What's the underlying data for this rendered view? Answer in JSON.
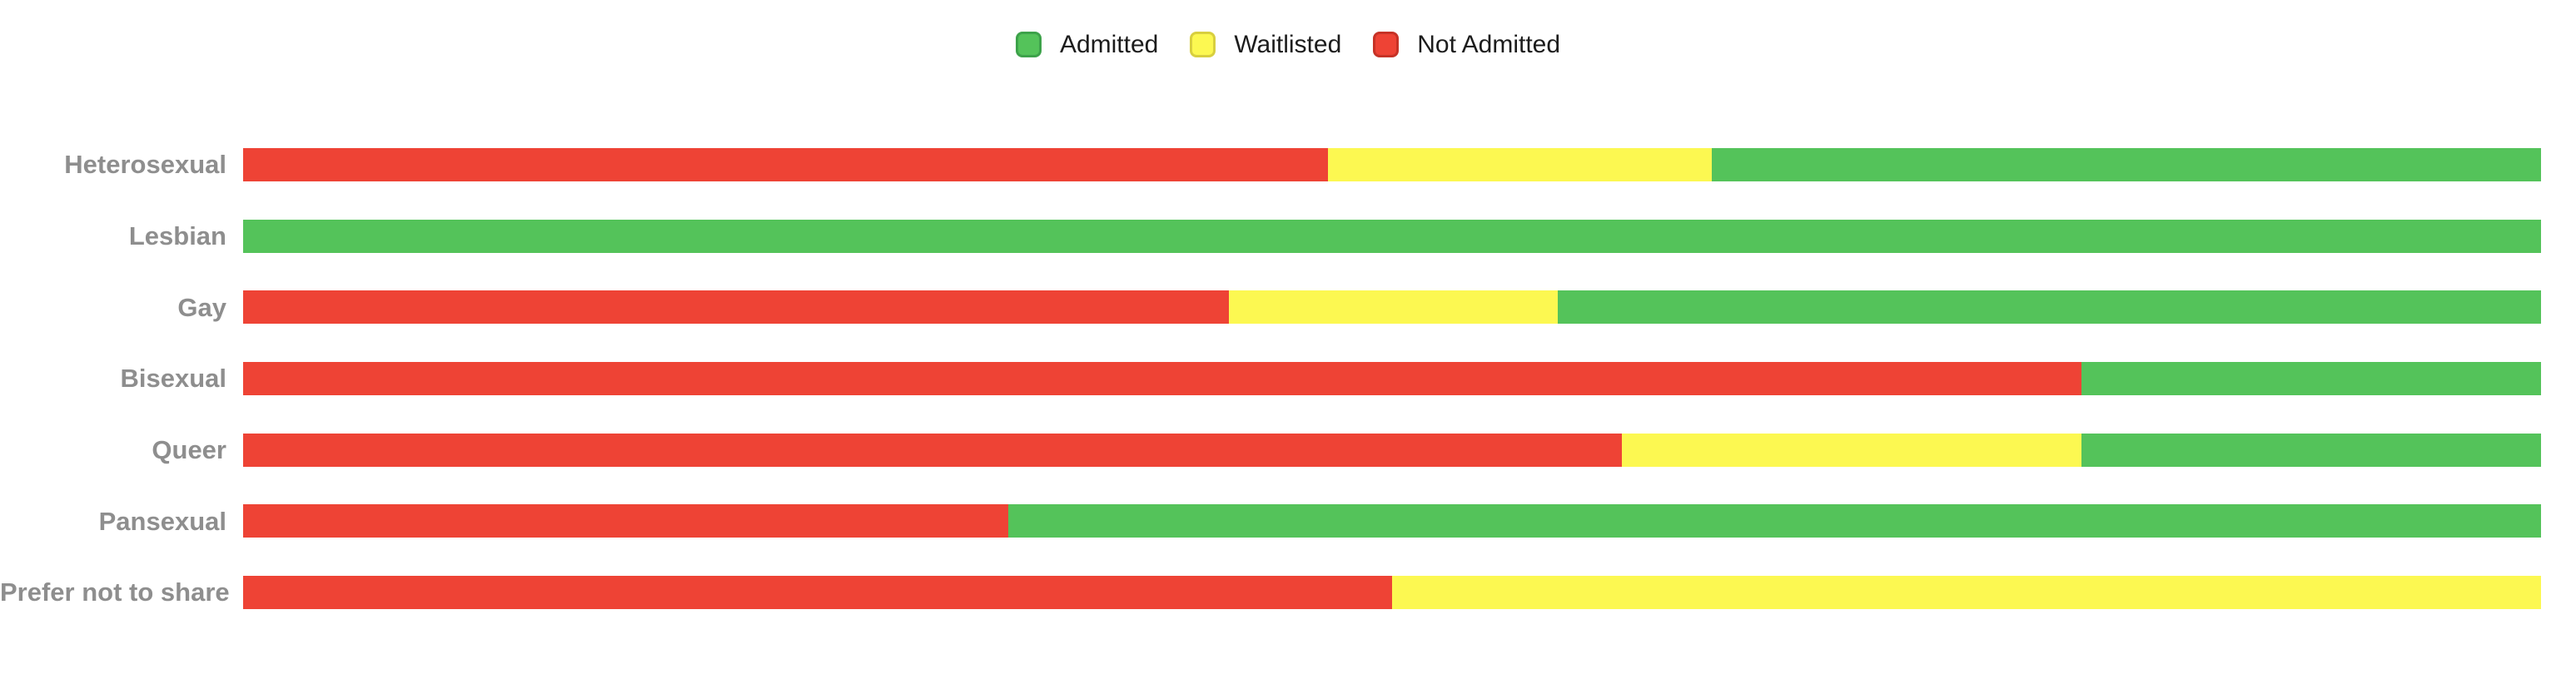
{
  "legend": {
    "items": [
      {
        "label": "Admitted",
        "color": "#54c35a",
        "border": "#3da24a"
      },
      {
        "label": "Waitlisted",
        "color": "#fcf851",
        "border": "#d8cf3f"
      },
      {
        "label": "Not Admitted",
        "color": "#ee4335",
        "border": "#c63226"
      }
    ]
  },
  "colors": {
    "admitted": "#54c35a",
    "waitlisted": "#fcf851",
    "not_admitted": "#ee4335",
    "category_label": "#8e8e8e",
    "legend_text": "#1c1c1c",
    "background": "#ffffff"
  },
  "chart_data": {
    "type": "bar",
    "orientation": "horizontal",
    "stacked": true,
    "percent_stacked": true,
    "title": "",
    "xlabel": "",
    "ylabel": "",
    "xlim": [
      0,
      100
    ],
    "grid": false,
    "legend_position": "top-center",
    "legend_order": [
      "Admitted",
      "Waitlisted",
      "Not Admitted"
    ],
    "stack_order_left_to_right": [
      "Not Admitted",
      "Waitlisted",
      "Admitted"
    ],
    "categories": [
      "Heterosexual",
      "Lesbian",
      "Gay",
      "Bisexual",
      "Queer",
      "Pansexual",
      "Prefer not to share"
    ],
    "series": [
      {
        "name": "Not Admitted",
        "color": "#ee4335",
        "values": [
          47.2,
          0,
          42.9,
          80,
          60,
          33.3,
          50
        ]
      },
      {
        "name": "Waitlisted",
        "color": "#fcf851",
        "values": [
          16.7,
          0,
          14.3,
          0,
          20,
          0,
          50
        ]
      },
      {
        "name": "Admitted",
        "color": "#54c35a",
        "values": [
          36.1,
          100,
          42.8,
          20,
          20,
          66.7,
          0
        ]
      }
    ]
  }
}
